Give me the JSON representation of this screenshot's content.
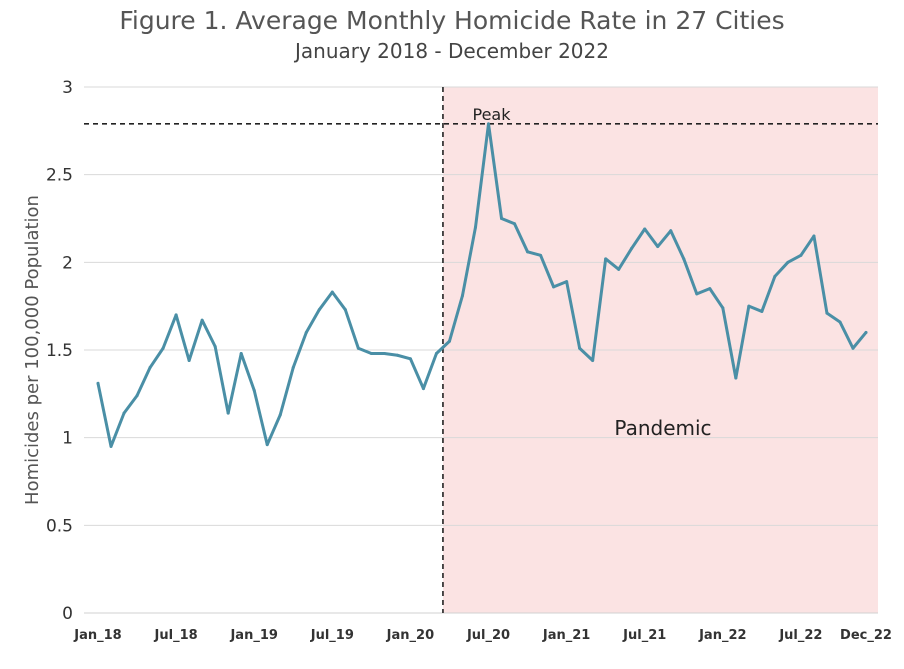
{
  "chart_data": {
    "type": "line",
    "title": "Figure 1. Average Monthly Homicide Rate in 27 Cities",
    "subtitle": "January 2018 - December 2022",
    "ylabel": "Homicides per 100,000 Population",
    "xlabel": "",
    "ylim": [
      0,
      3
    ],
    "yticks": [
      0,
      0.5,
      1,
      1.5,
      2,
      2.5,
      3
    ],
    "ytick_labels": [
      "0",
      "0.5",
      "1",
      "1.5",
      "2",
      "2.5",
      "3"
    ],
    "xtick_labels": [
      {
        "index": 0,
        "label": "Jan_18"
      },
      {
        "index": 6,
        "label": "Jul_18"
      },
      {
        "index": 12,
        "label": "Jan_19"
      },
      {
        "index": 18,
        "label": "Jul_19"
      },
      {
        "index": 24,
        "label": "Jan_20"
      },
      {
        "index": 30,
        "label": "Jul_20"
      },
      {
        "index": 36,
        "label": "Jan_21"
      },
      {
        "index": 42,
        "label": "Jul_21"
      },
      {
        "index": 48,
        "label": "Jan_22"
      },
      {
        "index": 54,
        "label": "Jul_22"
      },
      {
        "index": 59,
        "label": "Dec_22"
      }
    ],
    "values": [
      1.31,
      0.95,
      1.14,
      1.24,
      1.4,
      1.51,
      1.7,
      1.44,
      1.67,
      1.52,
      1.14,
      1.48,
      1.27,
      0.96,
      1.13,
      1.4,
      1.6,
      1.73,
      1.83,
      1.73,
      1.51,
      1.48,
      1.48,
      1.47,
      1.45,
      1.28,
      1.48,
      1.55,
      1.81,
      2.2,
      2.79,
      2.25,
      2.22,
      2.06,
      2.04,
      1.86,
      1.89,
      1.51,
      1.44,
      2.02,
      1.96,
      2.08,
      2.19,
      2.09,
      2.18,
      2.02,
      1.82,
      1.85,
      1.74,
      1.34,
      1.75,
      1.72,
      1.92,
      2.0,
      2.04,
      2.15,
      1.71,
      1.66,
      1.51,
      1.6
    ],
    "line_color": "#4a8fa6",
    "pandemic_start_index": 26.5,
    "pandemic_color": "#fbe3e3",
    "peak_value": 2.79,
    "annotations": {
      "peak_label": "Peak",
      "pandemic_label": "Pandemic"
    },
    "grid": true,
    "legend": "none"
  }
}
